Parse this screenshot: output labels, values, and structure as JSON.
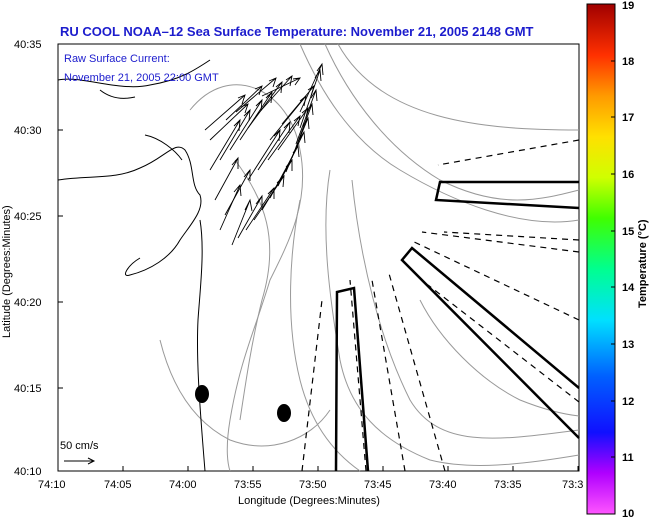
{
  "title": "RU COOL  NOAA–12  Sea Surface Temperature:  November 21, 2005 2148 GMT",
  "annotation": {
    "line1": "Raw Surface Current:",
    "line2": "November 21, 2005 22:00 GMT"
  },
  "scale_label": "50 cm/s",
  "x_axis": {
    "label": "Longitude (Degrees:Minutes)",
    "ticks": [
      "74:10",
      "74:05",
      "74:00",
      "73:55",
      "73:50",
      "73:45",
      "73:40",
      "73:35",
      "73:3"
    ]
  },
  "y_axis": {
    "label": "Latitude (Degrees:Minutes)",
    "ticks": [
      "40:35",
      "40:30",
      "40:25",
      "40:20",
      "40:15",
      "40:10"
    ]
  },
  "colorbar": {
    "label": "Temperature (°C)",
    "min": 10,
    "max": 19,
    "ticks": [
      "19",
      "18",
      "17",
      "16",
      "15",
      "14",
      "13",
      "12",
      "11",
      "10"
    ]
  },
  "colors": {
    "text_blue": "#1c1ccd",
    "contour": "#999999",
    "coast": "#000000"
  },
  "icons": {
    "vectors": "current-vector-icon",
    "buoy": "buoy-marker-icon"
  }
}
